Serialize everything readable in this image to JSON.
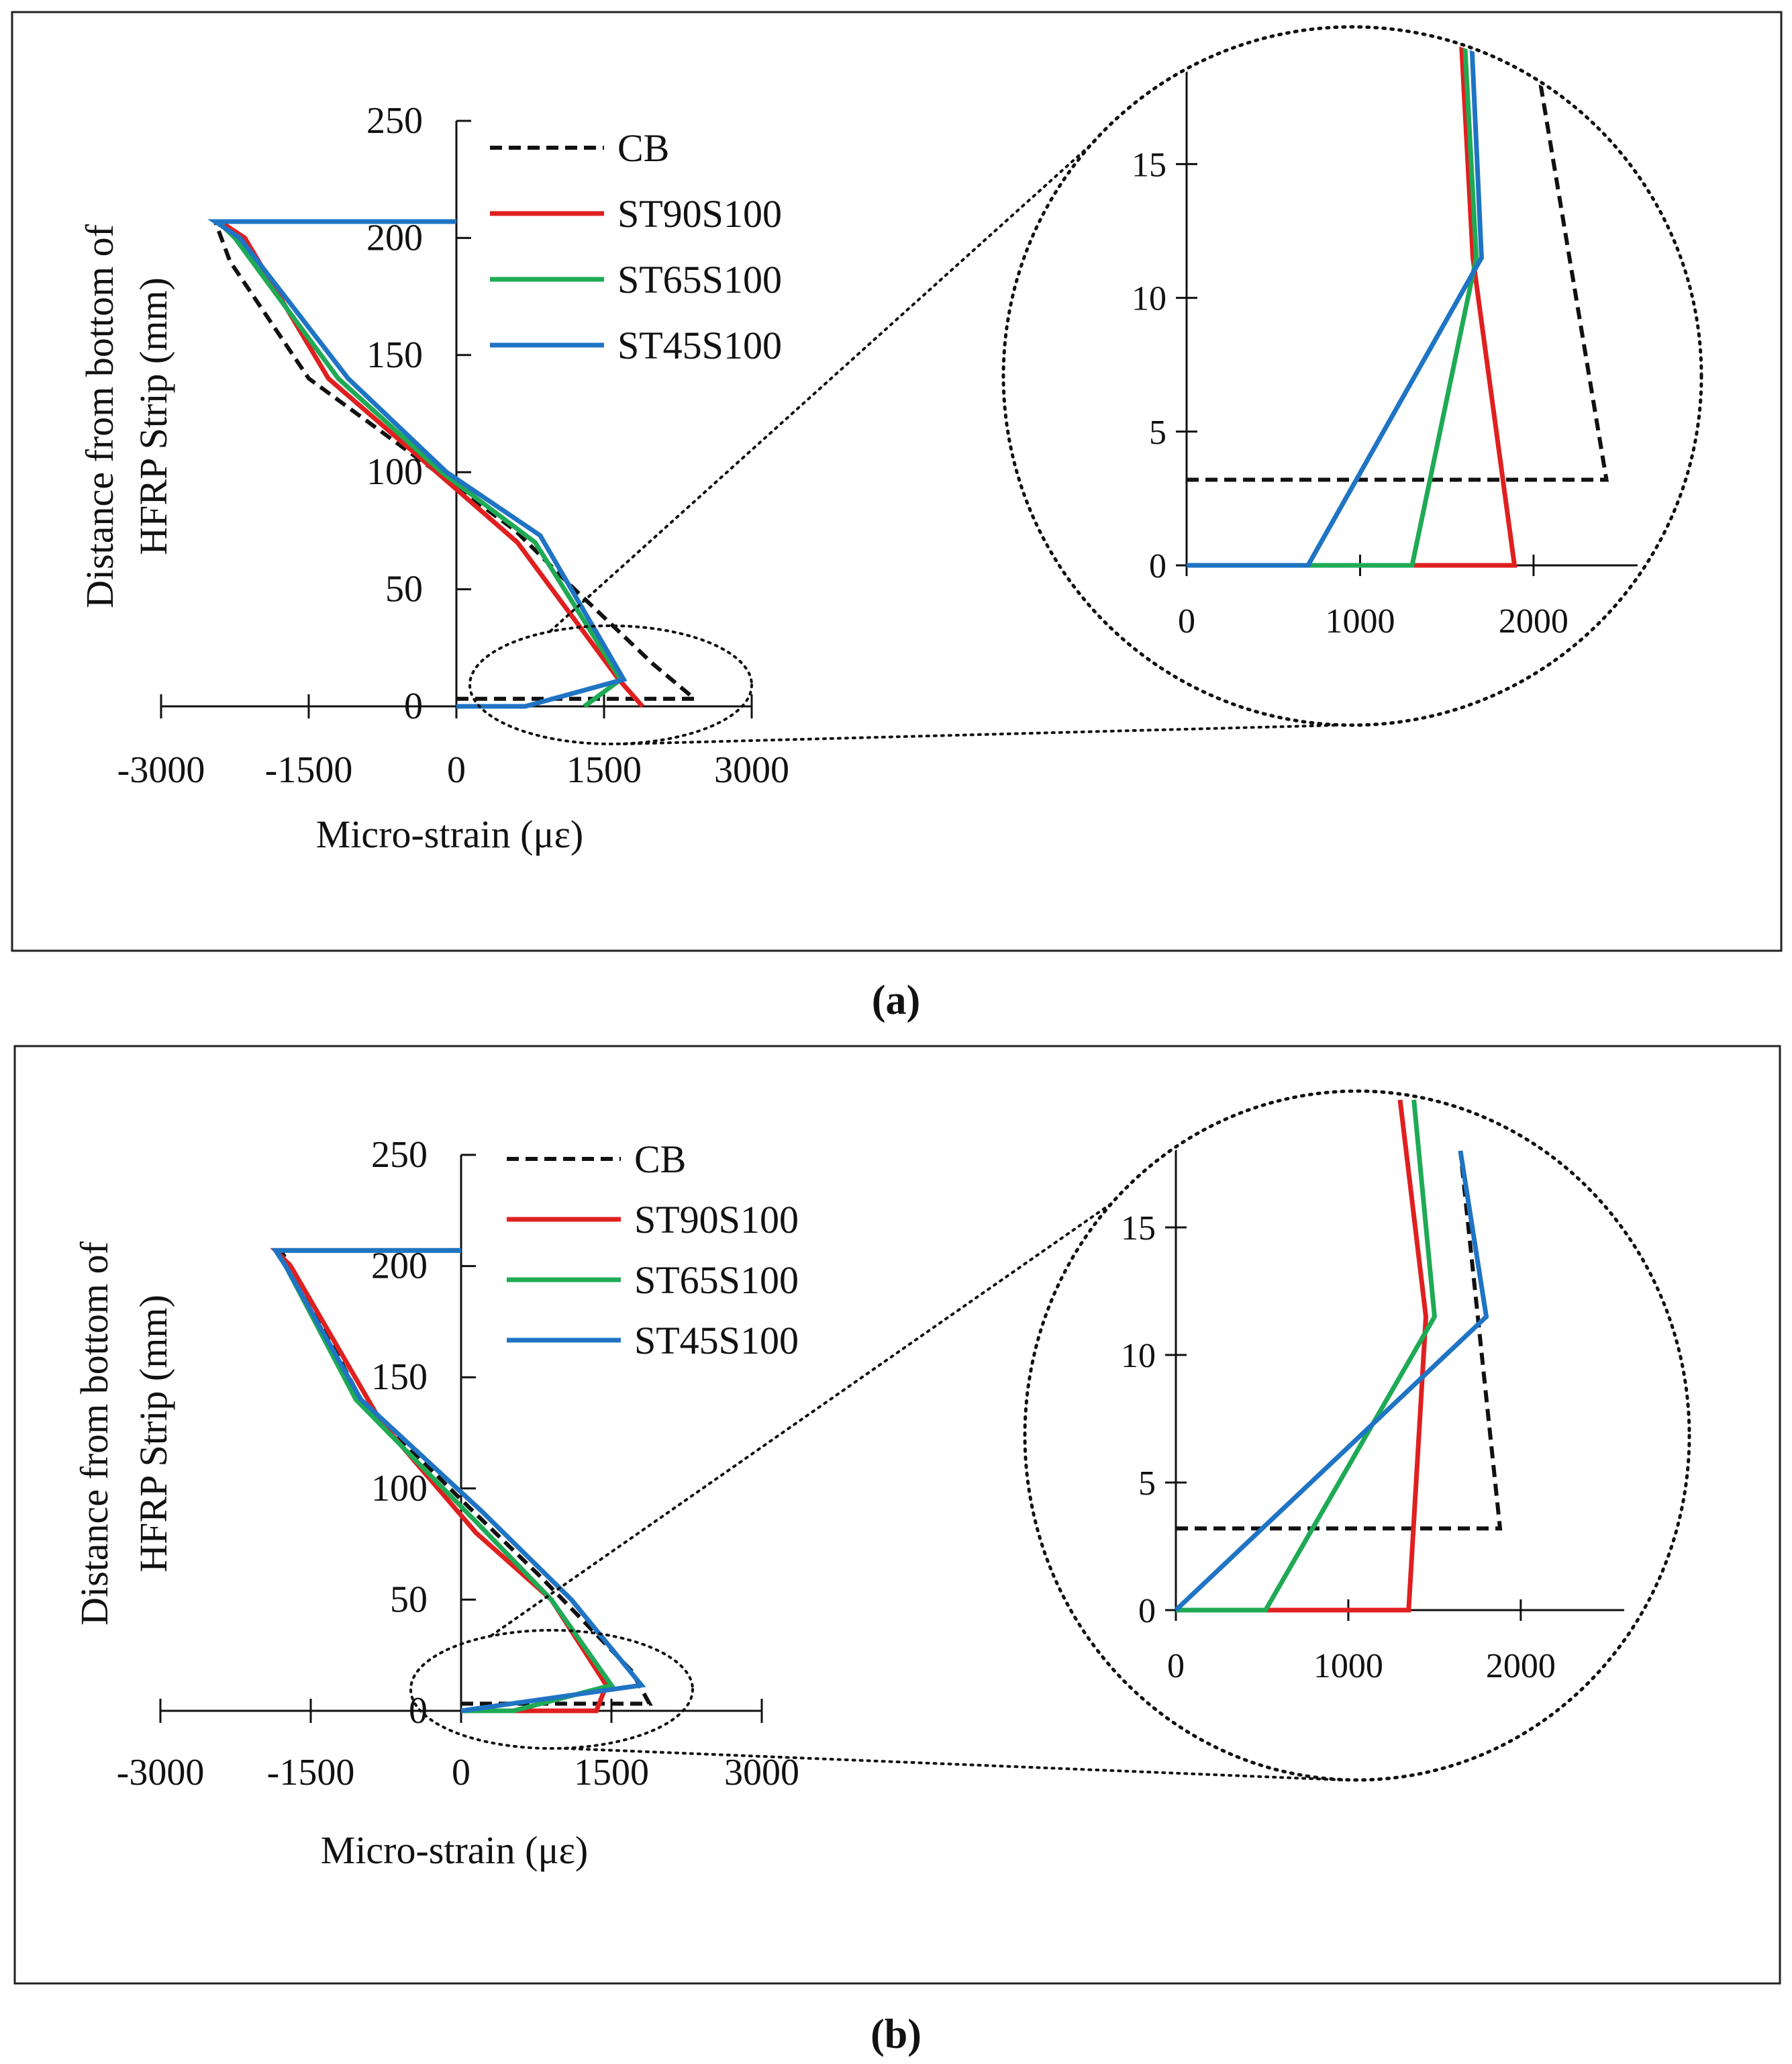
{
  "panel_captions": [
    "(a)",
    "(b)"
  ],
  "colors": {
    "CB": "#111111",
    "ST90S100": "#e02020",
    "ST65S100": "#1faa55",
    "ST45S100": "#1f74c4",
    "axis": "#111111",
    "frame": "#222222"
  },
  "chart_data": [
    {
      "panel": "a",
      "type": "line",
      "xlabel": "Micro-strain (με)",
      "ylabel_line1": "Distance from bottom of",
      "ylabel_line2": "HFRP Strip (mm)",
      "xlim": [
        -3000,
        3000
      ],
      "ylim": [
        0,
        250
      ],
      "xticks": [
        -3000,
        -1500,
        0,
        1500,
        3000
      ],
      "yticks": [
        0,
        50,
        100,
        150,
        200,
        250
      ],
      "series": [
        {
          "name": "CB",
          "style": "dashed",
          "x": [
            0,
            2420,
            2000,
            1200,
            600,
            -200,
            -1500,
            -2300,
            -2450,
            0
          ],
          "y": [
            3.2,
            3.2,
            18,
            50,
            75,
            100,
            140,
            190,
            207,
            207
          ]
        },
        {
          "name": "ST90S100",
          "style": "solid",
          "x": [
            1890,
            1650,
            620,
            -200,
            -1300,
            -2150,
            -2400,
            0
          ],
          "y": [
            0,
            11.5,
            70,
            100,
            140,
            200,
            207,
            207
          ]
        },
        {
          "name": "ST65S100",
          "style": "solid",
          "x": [
            1300,
            1670,
            800,
            -150,
            -1200,
            -2250,
            -2420,
            0
          ],
          "y": [
            0,
            11.5,
            70,
            100,
            140,
            200,
            207,
            207
          ]
        },
        {
          "name": "ST45S100",
          "style": "solid",
          "x": [
            0,
            700,
            1700,
            850,
            -100,
            -1100,
            -2200,
            -2450,
            0
          ],
          "y": [
            0,
            0,
            11.5,
            73,
            100,
            140,
            200,
            207,
            207
          ]
        }
      ],
      "legend": [
        "CB",
        "ST90S100",
        "ST65S100",
        "ST45S100"
      ],
      "inset": {
        "xlim": [
          0,
          2600
        ],
        "ylim": [
          0,
          18.5
        ],
        "xticks": [
          0,
          1000,
          2000
        ],
        "yticks": [
          0,
          5,
          10,
          15
        ],
        "series": [
          {
            "name": "CB",
            "style": "dashed",
            "x": [
              0,
              2420,
              2040
            ],
            "y": [
              3.2,
              3.2,
              18
            ]
          },
          {
            "name": "ST90S100",
            "style": "solid",
            "x": [
              0,
              1890,
              1650,
              1580
            ],
            "y": [
              0,
              0,
              11.5,
              20
            ]
          },
          {
            "name": "ST65S100",
            "style": "solid",
            "x": [
              0,
              1300,
              1670,
              1600
            ],
            "y": [
              0,
              0,
              11.5,
              20
            ]
          },
          {
            "name": "ST45S100",
            "style": "solid",
            "x": [
              0,
              700,
              1700,
              1640
            ],
            "y": [
              0,
              0,
              11.5,
              20
            ]
          }
        ]
      }
    },
    {
      "panel": "b",
      "type": "line",
      "xlabel": "Micro-strain (με)",
      "ylabel_line1": "Distance from bottom of",
      "ylabel_line2": "HFRP Strip (mm)",
      "xlim": [
        -3000,
        3000
      ],
      "ylim": [
        0,
        250
      ],
      "xticks": [
        -3000,
        -1500,
        0,
        1500,
        3000
      ],
      "yticks": [
        0,
        50,
        100,
        150,
        200,
        250
      ],
      "series": [
        {
          "name": "CB",
          "style": "dashed",
          "x": [
            0,
            1880,
            1700,
            800,
            0,
            -1000,
            -1700,
            -1800,
            0
          ],
          "y": [
            3.2,
            3.2,
            18,
            60,
            95,
            140,
            200,
            207,
            207
          ]
        },
        {
          "name": "ST90S100",
          "style": "solid",
          "x": [
            0,
            1350,
            1450,
            900,
            150,
            -800,
            -1700,
            -1850,
            0
          ],
          "y": [
            0,
            0,
            11.5,
            50,
            80,
            130,
            200,
            207,
            207
          ]
        },
        {
          "name": "ST65S100",
          "style": "solid",
          "x": [
            0,
            520,
            1500,
            900,
            150,
            -1050,
            -1750,
            -1850,
            0
          ],
          "y": [
            0,
            0,
            11.5,
            50,
            85,
            140,
            200,
            207,
            207
          ]
        },
        {
          "name": "ST45S100",
          "style": "solid",
          "x": [
            0,
            1800,
            1100,
            200,
            -1000,
            -1750,
            -1850,
            0
          ],
          "y": [
            0,
            11.5,
            50,
            90,
            140,
            200,
            207,
            207
          ]
        }
      ],
      "legend": [
        "CB",
        "ST90S100",
        "ST65S100",
        "ST45S100"
      ],
      "inset": {
        "xlim": [
          0,
          2600
        ],
        "ylim": [
          0,
          18.5
        ],
        "xticks": [
          0,
          1000,
          2000
        ],
        "yticks": [
          0,
          5,
          10,
          15
        ],
        "series": [
          {
            "name": "CB",
            "style": "dashed",
            "x": [
              0,
              1880,
              1650
            ],
            "y": [
              3.2,
              3.2,
              18
            ]
          },
          {
            "name": "ST90S100",
            "style": "solid",
            "x": [
              0,
              1350,
              1450,
              1300
            ],
            "y": [
              0,
              0,
              11.5,
              20
            ]
          },
          {
            "name": "ST65S100",
            "style": "solid",
            "x": [
              0,
              520,
              1500,
              1380
            ],
            "y": [
              0,
              0,
              11.5,
              20
            ]
          },
          {
            "name": "ST45S100",
            "style": "solid",
            "x": [
              0,
              1800,
              1650
            ],
            "y": [
              0,
              11.5,
              18
            ]
          }
        ]
      }
    }
  ]
}
